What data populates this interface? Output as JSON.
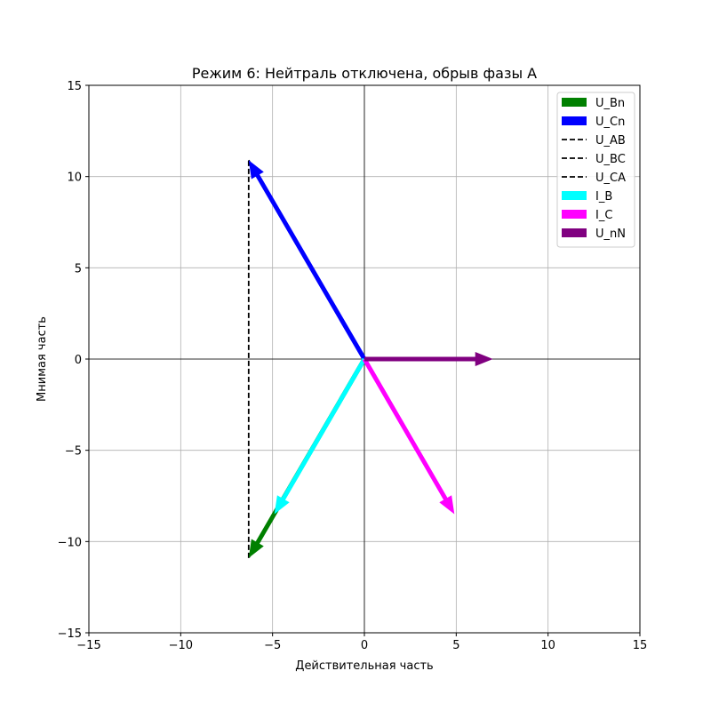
{
  "chart_data": {
    "type": "line",
    "title": "Режим 6: Нейтраль отключена, обрыв фазы A",
    "xlabel": "Действительная часть",
    "ylabel": "Мнимая часть",
    "xlim": [
      -15,
      15
    ],
    "ylim": [
      -15,
      15
    ],
    "xticks": [
      -15,
      -10,
      -5,
      0,
      5,
      10,
      15
    ],
    "yticks": [
      -15,
      -10,
      -5,
      0,
      5,
      10,
      15
    ],
    "xtick_labels": [
      "−15",
      "−10",
      "−5",
      "0",
      "5",
      "10",
      "15"
    ],
    "ytick_labels": [
      "−15",
      "−10",
      "−5",
      "0",
      "5",
      "10",
      "15"
    ],
    "grid": true,
    "legend_position": "upper right",
    "series": [
      {
        "name": "U_Bn",
        "kind": "arrow",
        "color": "#008000",
        "from": [
          0,
          0
        ],
        "to": [
          -6.3,
          -10.9
        ]
      },
      {
        "name": "U_Cn",
        "kind": "arrow",
        "color": "#0000ff",
        "from": [
          0,
          0
        ],
        "to": [
          -6.3,
          10.9
        ]
      },
      {
        "name": "U_AB",
        "kind": "dashed",
        "color": "#000000",
        "from": [
          0,
          0
        ],
        "to": [
          -6.3,
          -10.9
        ]
      },
      {
        "name": "U_BC",
        "kind": "dashed",
        "color": "#000000",
        "from": [
          -6.3,
          -10.9
        ],
        "to": [
          -6.3,
          10.9
        ]
      },
      {
        "name": "U_CA",
        "kind": "dashed",
        "color": "#000000",
        "from": [
          -6.3,
          10.9
        ],
        "to": [
          0,
          0
        ]
      },
      {
        "name": "I_B",
        "kind": "arrow",
        "color": "#00ffff",
        "from": [
          0,
          0
        ],
        "to": [
          -4.9,
          -8.5
        ]
      },
      {
        "name": "I_C",
        "kind": "arrow",
        "color": "#ff00ff",
        "from": [
          0,
          0
        ],
        "to": [
          4.9,
          -8.5
        ]
      },
      {
        "name": "U_nN",
        "kind": "arrow",
        "color": "#800080",
        "from": [
          0,
          0
        ],
        "to": [
          7.0,
          0
        ]
      }
    ]
  }
}
